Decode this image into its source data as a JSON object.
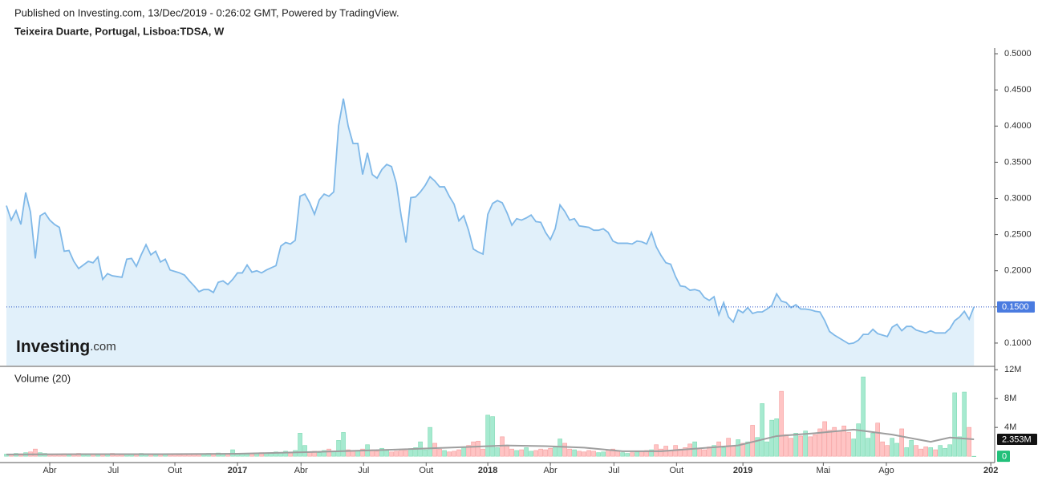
{
  "chart_data": {
    "type": "line",
    "subtitle": "Published on Investing.com, 13/Dec/2019 - 0:26:02 GMT, Powered by TradingView.",
    "title": "Teixeira Duarte, Portugal, Lisboa:TDSA, W",
    "logo": {
      "brand": "Investing",
      "suffix": ".com"
    },
    "xlim": [
      0,
      205.3
    ],
    "xticks": [
      {
        "value": 9,
        "label": "Abr"
      },
      {
        "value": 22.2,
        "label": "Jul"
      },
      {
        "value": 35,
        "label": "Out"
      },
      {
        "value": 48,
        "label": "2017"
      },
      {
        "value": 61.2,
        "label": "Abr"
      },
      {
        "value": 74.2,
        "label": "Jul"
      },
      {
        "value": 87.2,
        "label": "Out"
      },
      {
        "value": 100,
        "label": "2018"
      },
      {
        "value": 113,
        "label": "Abr"
      },
      {
        "value": 126.2,
        "label": "Jul"
      },
      {
        "value": 139.2,
        "label": "Out"
      },
      {
        "value": 153,
        "label": "2019"
      },
      {
        "value": 169.7,
        "label": "Mai"
      },
      {
        "value": 182.8,
        "label": "Ago"
      },
      {
        "value": 204.5,
        "label": "202"
      }
    ],
    "price": {
      "color": "#7fb8e8",
      "fill": "#e1f0fa",
      "ylim": [
        0.0689,
        0.5078
      ],
      "yticks": [
        {
          "value": 0.1,
          "label": "0.1000"
        },
        {
          "value": 0.15,
          "label": "0.1500"
        },
        {
          "value": 0.2,
          "label": "0.2000"
        },
        {
          "value": 0.25,
          "label": "0.2500"
        },
        {
          "value": 0.3,
          "label": "0.3000"
        },
        {
          "value": 0.35,
          "label": "0.3500"
        },
        {
          "value": 0.4,
          "label": "0.4000"
        },
        {
          "value": 0.45,
          "label": "0.4500"
        },
        {
          "value": 0.5,
          "label": "0.5000"
        }
      ],
      "last": {
        "value": 0.15,
        "label": "0.1500",
        "color": "#4a7be0"
      },
      "values": [
        0.29,
        0.27,
        0.283,
        0.264,
        0.308,
        0.281,
        0.217,
        0.276,
        0.28,
        0.27,
        0.264,
        0.26,
        0.227,
        0.228,
        0.213,
        0.203,
        0.208,
        0.213,
        0.211,
        0.219,
        0.188,
        0.196,
        0.193,
        0.192,
        0.191,
        0.216,
        0.217,
        0.206,
        0.222,
        0.236,
        0.222,
        0.227,
        0.212,
        0.216,
        0.201,
        0.199,
        0.197,
        0.194,
        0.186,
        0.179,
        0.171,
        0.174,
        0.174,
        0.17,
        0.184,
        0.186,
        0.181,
        0.188,
        0.197,
        0.197,
        0.208,
        0.198,
        0.2,
        0.197,
        0.201,
        0.204,
        0.207,
        0.234,
        0.239,
        0.237,
        0.242,
        0.303,
        0.306,
        0.294,
        0.278,
        0.298,
        0.306,
        0.303,
        0.309,
        0.4,
        0.438,
        0.4,
        0.376,
        0.376,
        0.333,
        0.363,
        0.333,
        0.328,
        0.34,
        0.347,
        0.344,
        0.321,
        0.276,
        0.239,
        0.301,
        0.302,
        0.309,
        0.318,
        0.33,
        0.324,
        0.316,
        0.316,
        0.303,
        0.292,
        0.269,
        0.276,
        0.256,
        0.23,
        0.226,
        0.223,
        0.278,
        0.293,
        0.297,
        0.294,
        0.28,
        0.263,
        0.272,
        0.27,
        0.273,
        0.277,
        0.268,
        0.267,
        0.253,
        0.243,
        0.258,
        0.291,
        0.282,
        0.27,
        0.272,
        0.262,
        0.261,
        0.26,
        0.256,
        0.256,
        0.258,
        0.253,
        0.241,
        0.238,
        0.238,
        0.238,
        0.237,
        0.241,
        0.24,
        0.237,
        0.253,
        0.233,
        0.221,
        0.211,
        0.209,
        0.192,
        0.179,
        0.178,
        0.173,
        0.174,
        0.172,
        0.163,
        0.159,
        0.164,
        0.139,
        0.156,
        0.136,
        0.129,
        0.146,
        0.142,
        0.149,
        0.141,
        0.143,
        0.143,
        0.147,
        0.152,
        0.168,
        0.158,
        0.156,
        0.149,
        0.153,
        0.147,
        0.147,
        0.146,
        0.144,
        0.143,
        0.131,
        0.116,
        0.111,
        0.107,
        0.103,
        0.099,
        0.1,
        0.104,
        0.112,
        0.112,
        0.119,
        0.113,
        0.111,
        0.109,
        0.122,
        0.126,
        0.117,
        0.123,
        0.123,
        0.118,
        0.116,
        0.114,
        0.117,
        0.114,
        0.114,
        0.114,
        0.12,
        0.131,
        0.136,
        0.144,
        0.133,
        0.15
      ]
    },
    "volume": {
      "label": "Volume (20)",
      "up_color": "#a6ead0",
      "down_color": "#ffc4c4",
      "ylim": [
        -650000,
        12350000
      ],
      "yticks": [
        {
          "value": 4000000,
          "label": "4M"
        },
        {
          "value": 8000000,
          "label": "8M"
        },
        {
          "value": 12000000,
          "label": "12M"
        }
      ],
      "last_value": 0,
      "last_color": "#22c07a",
      "values": [
        300000,
        250000,
        400000,
        350000,
        500000,
        600000,
        1000000,
        500000,
        400000,
        300000,
        250000,
        300000,
        350000,
        200000,
        300000,
        400000,
        250000,
        300000,
        350000,
        200000,
        300000,
        250000,
        400000,
        300000,
        200000,
        250000,
        300000,
        350000,
        400000,
        300000,
        250000,
        200000,
        300000,
        350000,
        250000,
        300000,
        200000,
        250000,
        300000,
        350000,
        300000,
        250000,
        400000,
        300000,
        450000,
        350000,
        300000,
        900000,
        400000,
        350000,
        300000,
        400000,
        350000,
        500000,
        450000,
        400000,
        600000,
        500000,
        700000,
        600000,
        800000,
        3200000,
        1500000,
        600000,
        700000,
        500000,
        800000,
        1000000,
        600000,
        2200000,
        3300000,
        900000,
        700000,
        800000,
        1000000,
        1600000,
        900000,
        700000,
        1100000,
        800000,
        600000,
        700000,
        900000,
        800000,
        1000000,
        1200000,
        2000000,
        900000,
        4000000,
        1800000,
        1000000,
        800000,
        600000,
        700000,
        900000,
        1200000,
        1500000,
        2000000,
        2100000,
        1000000,
        5700000,
        5500000,
        1200000,
        2700000,
        1500000,
        1000000,
        800000,
        900000,
        1200000,
        700000,
        800000,
        1000000,
        900000,
        1100000,
        1300000,
        2400000,
        1800000,
        1000000,
        900000,
        700000,
        600000,
        800000,
        700000,
        500000,
        600000,
        900000,
        1000000,
        700000,
        500000,
        400000,
        500000,
        600000,
        700000,
        800000,
        900000,
        1600000,
        1000000,
        1400000,
        800000,
        1500000,
        1000000,
        1200000,
        1700000,
        2000000,
        1100000,
        900000,
        1300000,
        1500000,
        2000000,
        1200000,
        2500000,
        1400000,
        2300000,
        1800000,
        2000000,
        4300000,
        2600000,
        7300000,
        2000000,
        5000000,
        5200000,
        9000000,
        3000000,
        2500000,
        3200000,
        2800000,
        3500000,
        2700000,
        3000000,
        3800000,
        4800000,
        3600000,
        4000000,
        3500000,
        4200000,
        3300000,
        2400000,
        4500000,
        11000000,
        2500000,
        3200000,
        4600000,
        2000000,
        1500000,
        2500000,
        1800000,
        3800000,
        1200000,
        2200000,
        1500000,
        1000000,
        1300000,
        1200000,
        900000,
        1500000,
        1100000,
        1600000,
        8800000,
        2700000,
        8900000,
        4000000,
        0
      ],
      "ma": {
        "color": "#9e9e9e",
        "x": [
          0,
          16,
          32,
          48,
          64,
          80,
          96,
          104,
          112,
          120,
          128,
          136,
          144,
          152,
          160,
          168,
          176,
          184,
          192,
          196,
          201
        ],
        "values": [
          250000,
          300000,
          300000,
          350000,
          600000,
          900000,
          1300000,
          1500000,
          1400000,
          1200000,
          700000,
          700000,
          1100000,
          1500000,
          2800000,
          3200000,
          3700000,
          3000000,
          2000000,
          2600000,
          2353000
        ],
        "last": {
          "value": 2353000,
          "label": "2.353M",
          "color": "#131313"
        }
      }
    }
  }
}
